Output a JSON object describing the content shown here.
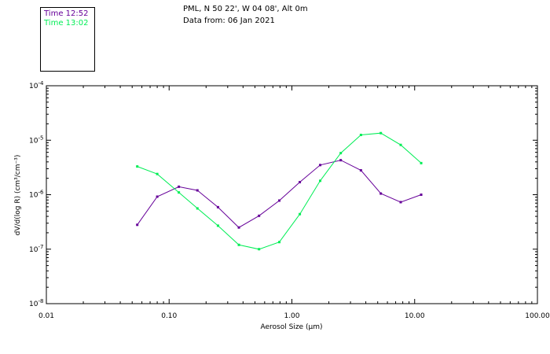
{
  "header": {
    "location": "PML, N 50 22', W 04 08', Alt 0m",
    "data_from": "Data from: 06 Jan 2021"
  },
  "chart_data": {
    "type": "line",
    "xlabel": "Aerosol Size (µm)",
    "ylabel": "dV/d(log R) (cm³/cm⁻³)",
    "x_scale": "log",
    "y_scale": "log",
    "xlim": [
      0.01,
      100
    ],
    "ylim": [
      1e-08,
      0.0001
    ],
    "x_tick_labels": [
      "0.01",
      "0.10",
      "1.00",
      "10.00",
      "100.00"
    ],
    "y_tick_labels": [
      {
        "base": "10",
        "exp": "-4"
      },
      {
        "base": "10",
        "exp": "-5"
      },
      {
        "base": "10",
        "exp": "-6"
      },
      {
        "base": "10",
        "exp": "-7"
      },
      {
        "base": "10",
        "exp": "-8"
      }
    ],
    "grid": false,
    "series": [
      {
        "name": "Time 12:52",
        "color": "#660099",
        "x": [
          0.055,
          0.08,
          0.12,
          0.17,
          0.25,
          0.37,
          0.54,
          0.79,
          1.16,
          1.7,
          2.5,
          3.65,
          5.3,
          7.7,
          11.3
        ],
        "y": [
          2.8e-07,
          9.2e-07,
          1.4e-06,
          1.2e-06,
          5.9e-07,
          2.5e-07,
          4.1e-07,
          7.8e-07,
          1.7e-06,
          3.5e-06,
          4.3e-06,
          2.8e-06,
          1.05e-06,
          7.3e-07,
          1e-06
        ]
      },
      {
        "name": "Time 13:02",
        "color": "#00ee55",
        "x": [
          0.055,
          0.08,
          0.12,
          0.17,
          0.25,
          0.37,
          0.54,
          0.79,
          1.16,
          1.7,
          2.5,
          3.65,
          5.3,
          7.7,
          11.3
        ],
        "y": [
          3.3e-06,
          2.4e-06,
          1.1e-06,
          5.6e-07,
          2.7e-07,
          1.2e-07,
          1e-07,
          1.35e-07,
          4.4e-07,
          1.8e-06,
          5.8e-06,
          1.25e-05,
          1.35e-05,
          8.2e-06,
          3.8e-06
        ]
      }
    ]
  }
}
